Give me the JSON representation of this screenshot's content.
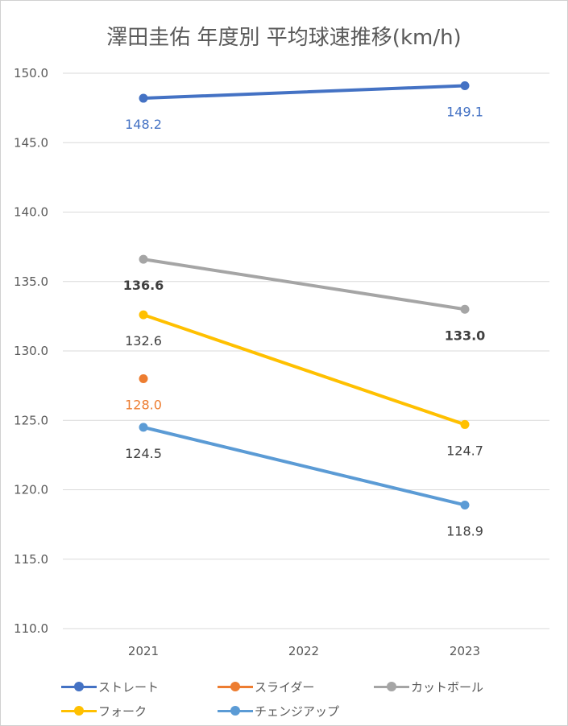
{
  "chart_data": {
    "type": "line",
    "title": "澤田圭佑 年度別 平均球速推移(km/h)",
    "categories": [
      "2021",
      "2022",
      "2023"
    ],
    "ylim": [
      110.0,
      150.0
    ],
    "yticks": [
      "110.0",
      "115.0",
      "120.0",
      "125.0",
      "130.0",
      "135.0",
      "140.0",
      "145.0",
      "150.0"
    ],
    "grid": true,
    "legend_position": "bottom",
    "series": [
      {
        "name": "ストレート",
        "color": "#4472C4",
        "label_color": "#4472C4",
        "label_bold": false,
        "label_pos": [
          "below",
          null,
          "above"
        ],
        "values": [
          148.2,
          null,
          149.1
        ]
      },
      {
        "name": "スライダー",
        "color": "#ED7D31",
        "label_color": "#ED7D31",
        "label_bold": false,
        "label_pos": [
          "below",
          null,
          null
        ],
        "values": [
          128.0,
          null,
          null
        ]
      },
      {
        "name": "カットボール",
        "color": "#A5A5A5",
        "label_color": "#404040",
        "label_bold": true,
        "label_pos": [
          "below",
          null,
          "below"
        ],
        "values": [
          136.6,
          null,
          133.0
        ]
      },
      {
        "name": "フォーク",
        "color": "#FFC000",
        "label_color": "#404040",
        "label_bold": false,
        "label_pos": [
          "below",
          null,
          "below"
        ],
        "values": [
          132.6,
          null,
          124.7
        ]
      },
      {
        "name": "チェンジアップ",
        "color": "#5B9BD5",
        "label_color": "#404040",
        "label_bold": false,
        "label_pos": [
          "below",
          null,
          "below"
        ],
        "values": [
          124.5,
          null,
          118.9
        ]
      }
    ]
  }
}
